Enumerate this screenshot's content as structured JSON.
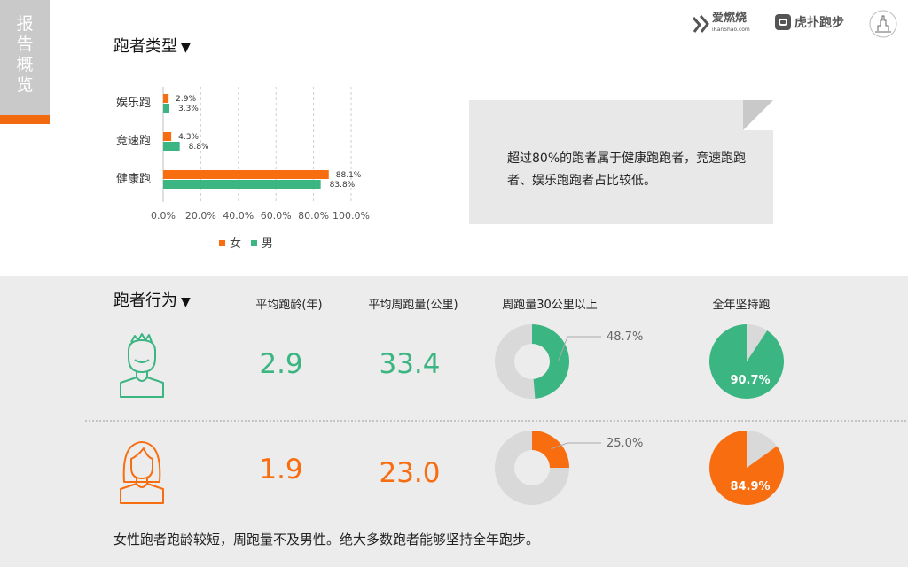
{
  "sidebar": {
    "title_chars": [
      "报",
      "告",
      "概",
      "览"
    ]
  },
  "logos": {
    "brand1": "爱燃烧",
    "brand1_sub": "iRanShao.com",
    "brand2": "虎扑跑步"
  },
  "section1": {
    "title": "跑者类型",
    "arrow": "▼"
  },
  "section2": {
    "title": "跑者行为",
    "arrow": "▼"
  },
  "note": {
    "text": "超过80%的跑者属于健康跑跑者，竞速跑跑者、娱乐跑跑者占比较低。"
  },
  "behavior": {
    "headers": {
      "age": "平均跑龄(年)",
      "weekly": "平均周跑量(公里)",
      "over30": "周跑量30公里以上",
      "yearround": "全年坚持跑"
    },
    "male": {
      "age": "2.9",
      "weekly": "33.4",
      "over30_label": "48.7%",
      "yearround_label": "90.7%"
    },
    "female": {
      "age": "1.9",
      "weekly": "23.0",
      "over30_label": "25.0%",
      "yearround_label": "84.9%"
    }
  },
  "summary": "女性跑者跑龄较短，周跑量不及男性。绝大多数跑者能够坚持全年跑步。",
  "colors": {
    "female": "#f86d0f",
    "male": "#3bb582",
    "grey": "#d9d9d9"
  },
  "chart_data": [
    {
      "type": "bar",
      "orientation": "horizontal",
      "categories": [
        "娱乐跑",
        "竞速跑",
        "健康跑"
      ],
      "series": [
        {
          "name": "女",
          "values": [
            2.9,
            4.3,
            88.1
          ],
          "labels": [
            "2.9%",
            "4.3%",
            "88.1%"
          ]
        },
        {
          "name": "男",
          "values": [
            3.3,
            8.8,
            83.8
          ],
          "labels": [
            "3.3%",
            "8.8%",
            "83.8%"
          ]
        }
      ],
      "xlim": [
        0,
        100
      ],
      "xticks": [
        "0.0%",
        "20.0%",
        "40.0%",
        "60.0%",
        "80.0%",
        "100.0%"
      ],
      "grid": true,
      "legend_position": "bottom"
    },
    {
      "type": "pie",
      "group": "男",
      "metric": "周跑量30公里以上",
      "values": [
        48.7,
        51.3
      ],
      "label": "48.7%"
    },
    {
      "type": "pie",
      "group": "男",
      "metric": "全年坚持跑",
      "values": [
        90.7,
        9.3
      ],
      "label": "90.7%"
    },
    {
      "type": "pie",
      "group": "女",
      "metric": "周跑量30公里以上",
      "values": [
        25.0,
        75.0
      ],
      "label": "25.0%"
    },
    {
      "type": "pie",
      "group": "女",
      "metric": "全年坚持跑",
      "values": [
        84.9,
        15.1
      ],
      "label": "84.9%"
    }
  ]
}
